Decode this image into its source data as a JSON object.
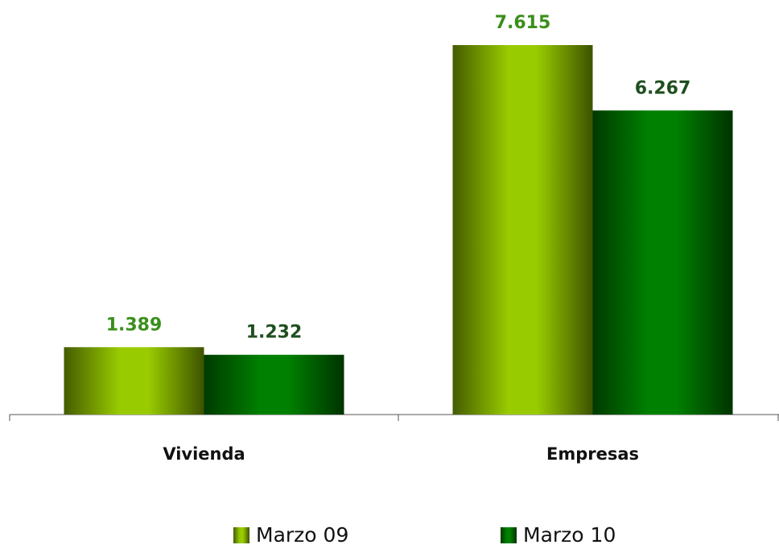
{
  "chart_data": {
    "type": "bar",
    "categories": [
      "Vivienda",
      "Empresas"
    ],
    "series": [
      {
        "name": "Marzo 09",
        "color": "#99cc00",
        "label_color": "#3a8f1a",
        "values": [
          1389,
          7615
        ],
        "value_labels": [
          "1.389",
          "7.615"
        ]
      },
      {
        "name": "Marzo 10",
        "color": "#008000",
        "label_color": "#1f4f1f",
        "values": [
          1232,
          6267
        ],
        "value_labels": [
          "1.232",
          "6.267"
        ]
      }
    ]
  }
}
